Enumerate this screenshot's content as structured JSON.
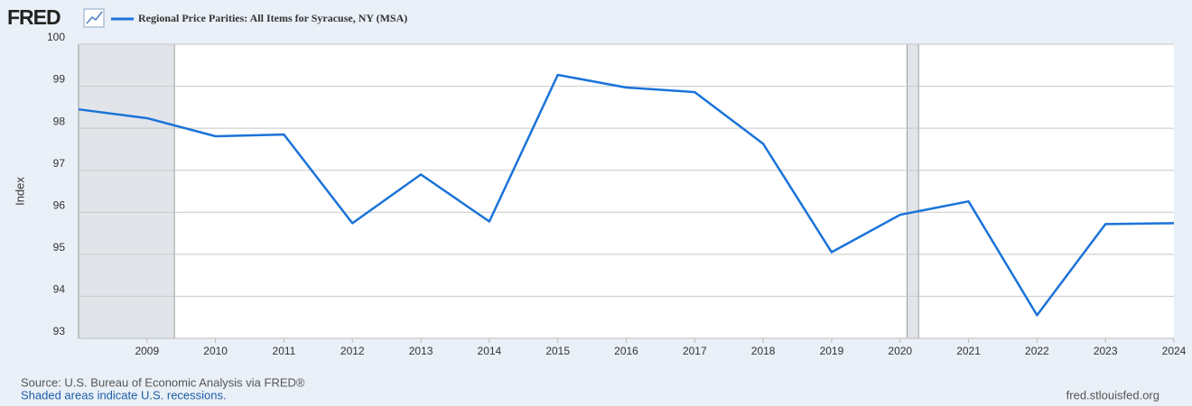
{
  "chart_data": {
    "type": "line",
    "logo": "FRED",
    "title": "Regional Price Parities: All Items for Syracuse, NY (MSA)",
    "y_label": "Index",
    "source": "Source: U.S. Bureau of Economic Analysis via FRED®",
    "note": "Shaded areas indicate U.S. recessions.",
    "url": "fred.stlouisfed.org",
    "x": [
      2008,
      2009,
      2010,
      2011,
      2012,
      2013,
      2014,
      2015,
      2016,
      2017,
      2018,
      2019,
      2020,
      2021,
      2022,
      2023,
      2024
    ],
    "series": [
      {
        "name": "Regional Price Parities: All Items for Syracuse, NY (MSA)",
        "color": "#1a73d9",
        "values": [
          98.45,
          98.24,
          97.81,
          97.85,
          95.74,
          96.9,
          95.78,
          99.27,
          98.97,
          98.86,
          97.63,
          95.05,
          95.94,
          96.26,
          93.55,
          95.72,
          95.74
        ]
      }
    ],
    "recessions": [
      [
        2008,
        2009.4
      ],
      [
        2020.1,
        2020.27
      ]
    ],
    "recession_color": "#e1e5ea",
    "xlim": [
      2008,
      2024
    ],
    "xticks": [
      2009,
      2010,
      2011,
      2012,
      2013,
      2014,
      2015,
      2016,
      2017,
      2018,
      2019,
      2020,
      2021,
      2022,
      2023,
      2024
    ],
    "ylim": [
      93,
      100
    ],
    "yticks": [
      93,
      94,
      95,
      96,
      97,
      98,
      99,
      100
    ],
    "grid": true
  }
}
